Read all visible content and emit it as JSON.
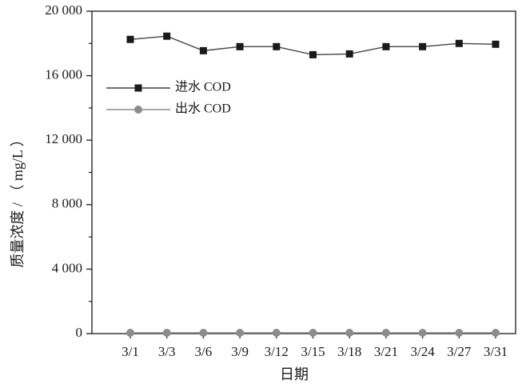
{
  "chart_data": {
    "type": "line",
    "xlabel": "日期",
    "ylabel": "质量浓度 / （ mg/L ）",
    "categories": [
      "3/1",
      "3/3",
      "3/6",
      "3/9",
      "3/12",
      "3/15",
      "3/18",
      "3/21",
      "3/24",
      "3/27",
      "3/31"
    ],
    "ylim": [
      0,
      20000
    ],
    "yticks": [
      0,
      4000,
      8000,
      12000,
      16000,
      20000
    ],
    "ytick_labels": [
      "0",
      "4 000",
      "8 000",
      "12 000",
      "16 000",
      "20 000"
    ],
    "grid": false,
    "legend_position": "upper-left",
    "series": [
      {
        "name": "进水 COD",
        "marker": "square",
        "color": "#1a1a1a",
        "line_color": "#444444",
        "values": [
          18250,
          18450,
          17550,
          17800,
          17800,
          17300,
          17350,
          17800,
          17800,
          18000,
          17950
        ]
      },
      {
        "name": "出水 COD",
        "marker": "circle",
        "color": "#8c8c8c",
        "line_color": "#8c8c8c",
        "values": [
          50,
          50,
          50,
          50,
          50,
          50,
          50,
          50,
          50,
          50,
          50
        ]
      }
    ]
  }
}
